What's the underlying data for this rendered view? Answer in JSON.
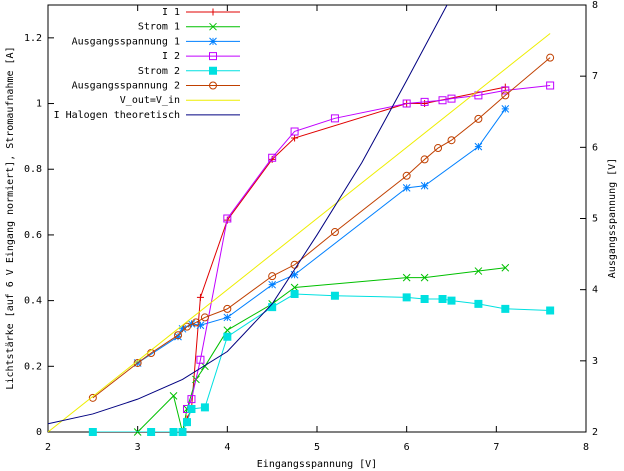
{
  "chart_data": {
    "type": "line",
    "xlabel": "Eingangsspannung [V]",
    "ylabel": "Lichtstärke [auf 6 V Eingang normiert], Stromaufnahme [A]",
    "y2label": "Ausgangsspannung [V]",
    "xlim": [
      2,
      8
    ],
    "xticks": [
      2,
      3,
      4,
      5,
      6,
      7,
      8
    ],
    "ylim": [
      0,
      1.3
    ],
    "yticks": [
      0,
      0.2,
      0.4,
      0.6,
      0.8,
      1,
      1.2
    ],
    "y2lim": [
      2,
      8
    ],
    "y2ticks": [
      2,
      3,
      4,
      5,
      6,
      7,
      8
    ],
    "grid": false,
    "legend": "top-left",
    "series": [
      {
        "name": "I 1",
        "color": "#e00000",
        "marker": "plus",
        "x": [
          3.55,
          3.6,
          3.7,
          4.0,
          4.5,
          4.75,
          6.0,
          6.2,
          7.1
        ],
        "values": [
          0.04,
          0.07,
          0.41,
          0.645,
          0.83,
          0.895,
          1.0,
          1.0,
          1.05
        ]
      },
      {
        "name": "Strom 1",
        "color": "#00c000",
        "marker": "cross",
        "x": [
          3.0,
          3.4,
          3.5,
          3.55,
          3.65,
          3.75,
          4.0,
          4.5,
          4.75,
          6.0,
          6.2,
          6.8,
          7.1
        ],
        "values": [
          0.0,
          0.11,
          0.0,
          0.07,
          0.16,
          0.2,
          0.31,
          0.39,
          0.44,
          0.47,
          0.47,
          0.49,
          0.5
        ]
      },
      {
        "name": "Ausgangsspannung 1",
        "color": "#0080ff",
        "marker": "star",
        "axis": "y2",
        "x": [
          3.0,
          3.45,
          3.5,
          3.6,
          3.7,
          4.0,
          4.5,
          4.75,
          6.0,
          6.2,
          6.8,
          7.1
        ],
        "values": [
          2.97,
          3.34,
          3.45,
          3.52,
          3.5,
          3.61,
          4.07,
          4.21,
          5.43,
          5.46,
          6.01,
          6.54
        ]
      },
      {
        "name": "I 2",
        "color": "#c000ff",
        "marker": "square",
        "x": [
          3.55,
          3.6,
          3.7,
          4.0,
          4.5,
          4.75,
          5.2,
          6.0,
          6.2,
          6.4,
          6.5,
          6.8,
          7.1,
          7.6
        ],
        "values": [
          0.07,
          0.1,
          0.22,
          0.65,
          0.835,
          0.915,
          0.955,
          1.0,
          1.005,
          1.01,
          1.015,
          1.025,
          1.04,
          1.055
        ]
      },
      {
        "name": "Strom 2",
        "color": "#00e0e0",
        "marker": "filled-square",
        "x": [
          2.5,
          3.15,
          3.4,
          3.5,
          3.55,
          3.6,
          3.75,
          4.0,
          4.5,
          4.75,
          5.2,
          6.0,
          6.2,
          6.4,
          6.5,
          6.8,
          7.1,
          7.6
        ],
        "values": [
          0.0,
          0.0,
          0.0,
          0.0,
          0.03,
          0.07,
          0.075,
          0.29,
          0.38,
          0.42,
          0.415,
          0.41,
          0.405,
          0.405,
          0.4,
          0.39,
          0.375,
          0.37
        ]
      },
      {
        "name": "Ausgangsspannung 2",
        "color": "#c04000",
        "marker": "circle",
        "axis": "y2",
        "x": [
          2.5,
          3.0,
          3.15,
          3.45,
          3.55,
          3.65,
          3.75,
          4.0,
          4.5,
          4.75,
          5.2,
          6.0,
          6.2,
          6.35,
          6.5,
          6.8,
          7.1,
          7.6
        ],
        "values": [
          2.48,
          2.97,
          3.11,
          3.36,
          3.48,
          3.54,
          3.61,
          3.73,
          4.19,
          4.35,
          4.81,
          5.6,
          5.83,
          5.99,
          6.1,
          6.4,
          6.73,
          7.26
        ]
      },
      {
        "name": "V_out=V_in",
        "color": "#eeee00",
        "marker": "none",
        "axis": "y2",
        "x": [
          2,
          7.6
        ],
        "values": [
          2,
          7.6
        ]
      },
      {
        "name": "I Halogen theoretisch",
        "color": "#000080",
        "marker": "none",
        "x": [
          2,
          2.5,
          3,
          3.5,
          4,
          4.5,
          5,
          5.5,
          6,
          6.45
        ],
        "values": [
          0.025,
          0.055,
          0.1,
          0.16,
          0.245,
          0.39,
          0.6,
          0.82,
          1.07,
          1.3
        ]
      }
    ]
  }
}
